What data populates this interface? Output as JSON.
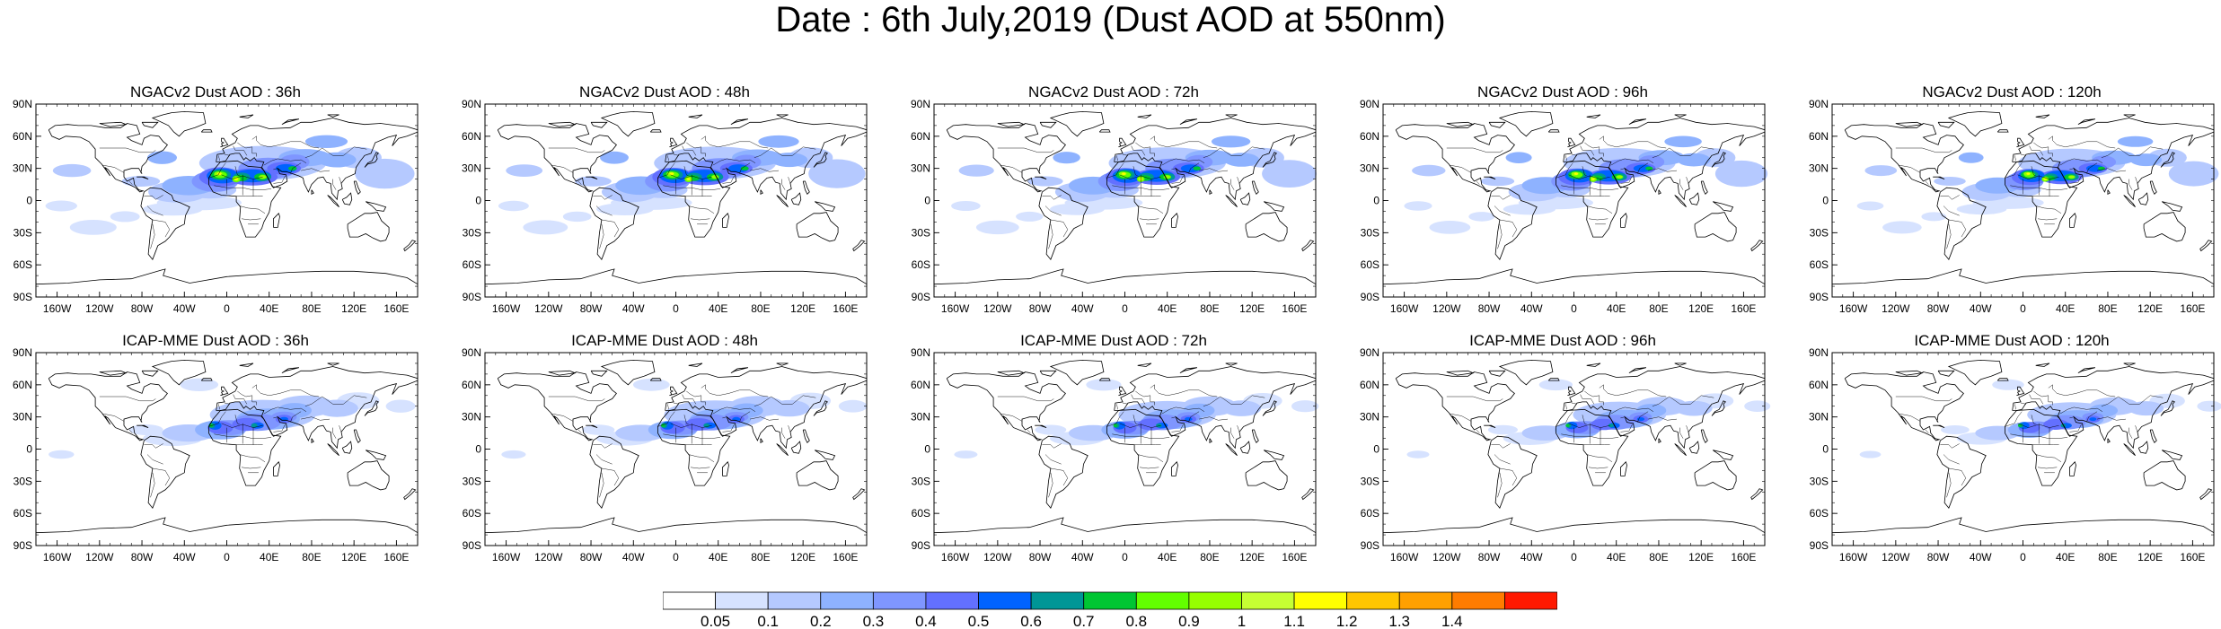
{
  "figure": {
    "title": "Date : 6th July,2019 (Dust AOD at 550nm)"
  },
  "axes": {
    "lat_ticks": [
      "90N",
      "60N",
      "30N",
      "0",
      "30S",
      "60S",
      "90S"
    ],
    "lon_ticks": [
      "160W",
      "120W",
      "80W",
      "40W",
      "0",
      "40E",
      "80E",
      "120E",
      "160E"
    ]
  },
  "panels": [
    {
      "title": "NGACv2 Dust AOD : 36h",
      "model": "NGACv2",
      "lead_h": 36
    },
    {
      "title": "NGACv2 Dust AOD : 48h",
      "model": "NGACv2",
      "lead_h": 48
    },
    {
      "title": "NGACv2 Dust AOD : 72h",
      "model": "NGACv2",
      "lead_h": 72
    },
    {
      "title": "NGACv2 Dust AOD : 96h",
      "model": "NGACv2",
      "lead_h": 96
    },
    {
      "title": "NGACv2 Dust AOD : 120h",
      "model": "NGACv2",
      "lead_h": 120
    },
    {
      "title": "ICAP-MME Dust AOD : 36h",
      "model": "ICAP-MME",
      "lead_h": 36
    },
    {
      "title": "ICAP-MME Dust AOD : 48h",
      "model": "ICAP-MME",
      "lead_h": 48
    },
    {
      "title": "ICAP-MME Dust AOD : 72h",
      "model": "ICAP-MME",
      "lead_h": 72
    },
    {
      "title": "ICAP-MME Dust AOD : 96h",
      "model": "ICAP-MME",
      "lead_h": 96
    },
    {
      "title": "ICAP-MME Dust AOD : 120h",
      "model": "ICAP-MME",
      "lead_h": 120
    }
  ],
  "colorbar": {
    "labels": [
      "0.05",
      "0.1",
      "0.2",
      "0.3",
      "0.4",
      "0.5",
      "0.6",
      "0.7",
      "0.8",
      "0.9",
      "1",
      "1.1",
      "1.2",
      "1.3",
      "1.4"
    ],
    "colors": [
      "#ffffff",
      "#d6e2ff",
      "#b5c9ff",
      "#8eb2ff",
      "#7f96ff",
      "#6370ff",
      "#0063ff",
      "#009696",
      "#00c633",
      "#63ff00",
      "#96ff00",
      "#c6ff33",
      "#ffff00",
      "#ffc600",
      "#ffa000",
      "#ff7c00",
      "#ff1900"
    ]
  },
  "colors": {
    "coast": "#000000",
    "dust_levels": [
      "#d6e2ff",
      "#b5c9ff",
      "#8eb2ff",
      "#7f96ff",
      "#6370ff",
      "#0063ff",
      "#009696",
      "#00c633",
      "#63ff00",
      "#96ff00",
      "#ffff00"
    ]
  }
}
